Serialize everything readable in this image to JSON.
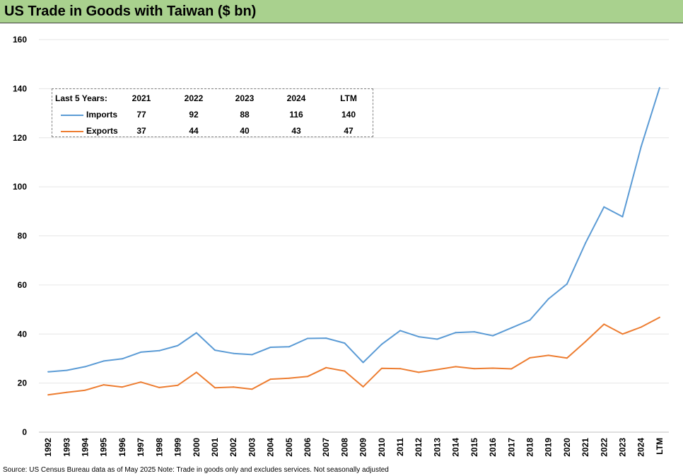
{
  "title": "US Trade in Goods with Taiwan ($ bn)",
  "source_note": "Source: US Census Bureau data as of May 2025 Note: Trade in goods only and excludes services. Not seasonally adjusted",
  "colors": {
    "title_bar": "#a9d18e",
    "imports": "#5b9bd5",
    "exports": "#ed7d31",
    "grid": "#e6e6e6"
  },
  "legend_table": {
    "header_label": "Last 5 Years:",
    "columns": [
      "2021",
      "2022",
      "2023",
      "2024",
      "LTM"
    ],
    "rows": [
      {
        "name": "Imports",
        "values": [
          "77",
          "92",
          "88",
          "116",
          "140"
        ]
      },
      {
        "name": "Exports",
        "values": [
          "37",
          "44",
          "40",
          "43",
          "47"
        ]
      }
    ]
  },
  "chart_data": {
    "type": "line",
    "title": "US Trade in Goods with Taiwan ($ bn)",
    "xlabel": "",
    "ylabel": "",
    "ylim": [
      0,
      160
    ],
    "yticks": [
      0,
      20,
      40,
      60,
      80,
      100,
      120,
      140,
      160
    ],
    "grid": true,
    "legend_position": "top-left",
    "categories": [
      "1992",
      "1993",
      "1994",
      "1995",
      "1996",
      "1997",
      "1998",
      "1999",
      "2000",
      "2001",
      "2002",
      "2003",
      "2004",
      "2005",
      "2006",
      "2007",
      "2008",
      "2009",
      "2010",
      "2011",
      "2012",
      "2013",
      "2014",
      "2015",
      "2016",
      "2017",
      "2018",
      "2019",
      "2020",
      "2021",
      "2022",
      "2023",
      "2024",
      "LTM"
    ],
    "series": [
      {
        "name": "Imports",
        "color": "#5b9bd5",
        "values": [
          24.6,
          25.2,
          26.7,
          29.0,
          29.9,
          32.6,
          33.2,
          35.3,
          40.5,
          33.4,
          32.1,
          31.6,
          34.6,
          34.8,
          38.2,
          38.3,
          36.3,
          28.4,
          35.8,
          41.4,
          38.9,
          37.9,
          40.6,
          40.9,
          39.3,
          42.5,
          45.7,
          54.3,
          60.4,
          77.1,
          91.8,
          87.8,
          116.3,
          140.4
        ]
      },
      {
        "name": "Exports",
        "color": "#ed7d31",
        "values": [
          15.2,
          16.2,
          17.1,
          19.3,
          18.4,
          20.4,
          18.2,
          19.1,
          24.4,
          18.1,
          18.4,
          17.5,
          21.6,
          22.0,
          22.7,
          26.3,
          24.9,
          18.5,
          26.0,
          25.9,
          24.4,
          25.5,
          26.7,
          25.9,
          26.1,
          25.8,
          30.3,
          31.3,
          30.2,
          36.9,
          44.0,
          40.0,
          42.8,
          46.8
        ]
      }
    ]
  }
}
